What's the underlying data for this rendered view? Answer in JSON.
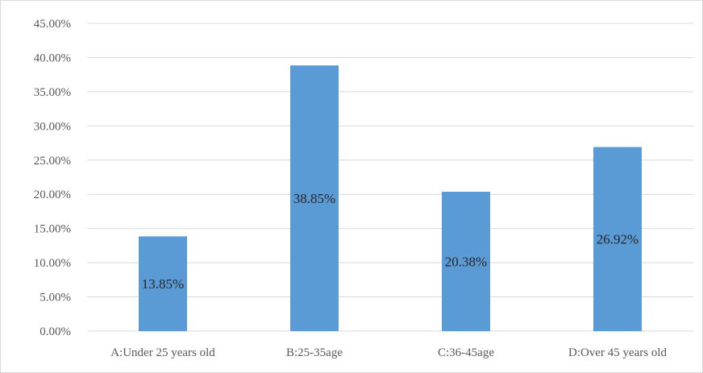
{
  "chart_data": {
    "type": "bar",
    "title": "",
    "xlabel": "",
    "ylabel": "",
    "categories": [
      "A:Under 25 years old",
      "B:25-35age",
      "C:36-45age",
      "D:Over 45 years old"
    ],
    "values": [
      13.85,
      38.85,
      20.38,
      26.92
    ],
    "data_labels": [
      "13.85%",
      "38.85%",
      "20.38%",
      "26.92%"
    ],
    "ylim": [
      0,
      45
    ],
    "yticks": [
      0,
      5,
      10,
      15,
      20,
      25,
      30,
      35,
      40,
      45
    ],
    "ytick_labels": [
      "0.00%",
      "5.00%",
      "10.00%",
      "15.00%",
      "20.00%",
      "25.00%",
      "30.00%",
      "35.00%",
      "40.00%",
      "45.00%"
    ],
    "grid": true,
    "legend": "none",
    "bar_color": "#5b9bd5",
    "grid_color": "#d9d9d9"
  }
}
